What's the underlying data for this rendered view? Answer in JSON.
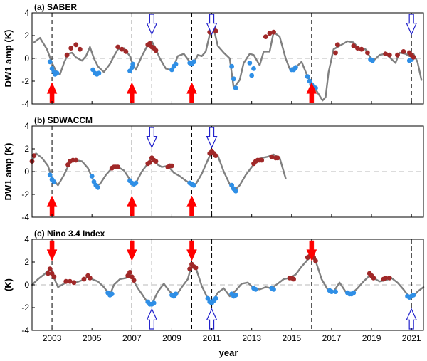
{
  "xlabel": "year",
  "colors": {
    "line": "#808080",
    "zero": "#c8c8c8",
    "cold": "#2f8fe6",
    "warm": "#a02828",
    "red_arrow": "#ff0000",
    "blue_arrow": "#2222cc",
    "vline": "#000000"
  },
  "chart_data": [
    {
      "type": "line",
      "title": "(a) SABER",
      "ylabel": "DW1 amp (K)",
      "xlim": [
        2002,
        2021.6
      ],
      "ylim": [
        -4,
        4
      ],
      "yticks": [
        -4,
        -2,
        0,
        2,
        4
      ],
      "xticks": [],
      "dashed_years": [
        2003,
        2007,
        2008,
        2010,
        2011,
        2016,
        2021
      ],
      "line": {
        "x": [
          2002.1,
          2002.4,
          2002.75,
          2003.0,
          2003.2,
          2003.4,
          2003.6,
          2003.8,
          2004.0,
          2004.2,
          2004.5,
          2004.7,
          2004.9,
          2005.1,
          2005.3,
          2005.6,
          2005.9,
          2006.1,
          2006.3,
          2006.6,
          2006.9,
          2007.0,
          2007.2,
          2007.5,
          2007.8,
          2008.0,
          2008.2,
          2008.4,
          2008.7,
          2008.9,
          2009.1,
          2009.3,
          2009.6,
          2009.9,
          2010.1,
          2010.3,
          2010.5,
          2010.7,
          2010.9,
          2011.1,
          2011.3,
          2011.6,
          2011.9,
          2012.1,
          2012.4,
          2012.6,
          2012.9,
          2013.1,
          2013.4,
          2013.6,
          2013.9,
          2014.1,
          2014.4,
          2014.7,
          2014.9,
          2015.2,
          2015.5,
          2015.8,
          2016.0,
          2016.3,
          2016.55,
          2016.7,
          2016.85,
          2017.1,
          2017.5,
          2017.8,
          2018.1,
          2018.4,
          2018.7,
          2018.9,
          2019.1,
          2019.4,
          2019.7,
          2019.9,
          2020.2,
          2020.4,
          2020.7,
          2020.9,
          2021.1,
          2021.3,
          2021.5
        ],
        "y": [
          1.4,
          1.8,
          0.8,
          -0.4,
          -1.1,
          -1.4,
          -0.4,
          0.4,
          0.5,
          0.1,
          -0.2,
          0.2,
          1.0,
          0.0,
          -0.7,
          -1.2,
          -0.5,
          0.2,
          0.8,
          0.9,
          0.2,
          -0.3,
          -1.0,
          0.2,
          1.2,
          1.5,
          0.8,
          0.0,
          -0.9,
          -1.0,
          -0.7,
          0.2,
          0.4,
          -0.3,
          -0.4,
          0.3,
          0.2,
          0.6,
          2.1,
          2.6,
          1.1,
          0.5,
          0.0,
          -2.6,
          -1.9,
          -0.4,
          0.4,
          0.3,
          -0.6,
          0.6,
          0.6,
          2.3,
          1.9,
          0.0,
          -0.9,
          -0.8,
          -0.3,
          -1.6,
          -2.2,
          -3.0,
          -3.7,
          -3.4,
          -1.2,
          0.8,
          1.2,
          1.5,
          1.4,
          0.8,
          0.8,
          0.2,
          -0.2,
          0.3,
          0.4,
          0.1,
          -0.4,
          0.5,
          0.4,
          0.2,
          0.4,
          -0.3,
          -1.9
        ]
      },
      "warm_points": {
        "x": [
          2003.75,
          2003.95,
          2004.2,
          2004.4,
          2006.3,
          2006.5,
          2006.7,
          2007.8,
          2007.9,
          2008.0,
          2008.1,
          2008.2,
          2010.9,
          2011.0,
          2011.1,
          2011.2,
          2013.7,
          2013.9,
          2014.1,
          2017.2,
          2017.3,
          2018.1,
          2018.3,
          2018.5,
          2018.8,
          2019.7,
          2019.9,
          2020.3,
          2020.6,
          2020.9,
          2021.0,
          2021.1
        ],
        "y": [
          0.3,
          0.9,
          1.2,
          0.8,
          1.0,
          0.8,
          0.6,
          1.2,
          1.3,
          1.0,
          0.9,
          0.7,
          2.3,
          2.5,
          2.6,
          2.4,
          1.9,
          2.2,
          2.3,
          0.5,
          1.2,
          1.1,
          0.9,
          0.8,
          0.5,
          0.4,
          0.3,
          0.3,
          0.6,
          0.5,
          0.3,
          0.1
        ]
      },
      "cold_points": {
        "x": [
          2002.9,
          2003.0,
          2003.1,
          2003.15,
          2003.25,
          2005.05,
          2005.15,
          2005.25,
          2005.35,
          2006.9,
          2007.0,
          2007.05,
          2009.0,
          2009.1,
          2009.2,
          2009.9,
          2010.0,
          2010.1,
          2012.0,
          2012.1,
          2012.2,
          2012.9,
          2013.0,
          2013.1,
          2015.0,
          2015.1,
          2015.2,
          2015.8,
          2015.9,
          2016.0,
          2016.1,
          2016.2,
          2018.95,
          2019.05,
          2020.9,
          2021.0
        ],
        "y": [
          -0.3,
          -0.9,
          -1.2,
          -1.4,
          -1.3,
          -1.0,
          -1.3,
          -1.4,
          -1.3,
          -1.1,
          -0.8,
          -0.5,
          -1.0,
          -0.7,
          -0.5,
          -0.4,
          -0.5,
          -0.3,
          -0.7,
          -1.8,
          -2.6,
          -0.4,
          -1.5,
          -0.9,
          -1.0,
          -1.0,
          -0.8,
          -1.6,
          -2.0,
          -2.3,
          -2.5,
          -2.6,
          -0.1,
          -0.2,
          -0.2,
          -0.1
        ]
      },
      "red_arrows": {
        "years": [
          2003,
          2007,
          2010,
          2016
        ],
        "dir": "up",
        "at": "bottom"
      },
      "blue_arrows": {
        "years": [
          2008,
          2011,
          2021
        ],
        "dir": "down",
        "at": "top"
      }
    },
    {
      "type": "line",
      "title": "(b) SDWACCM",
      "ylabel": "DW1 amp (K)",
      "xlim": [
        2002,
        2021.6
      ],
      "ylim": [
        -4,
        4
      ],
      "yticks": [
        -4,
        -2,
        0,
        2,
        4
      ],
      "xticks": [],
      "dashed_years": [
        2003,
        2007,
        2008,
        2010,
        2011
      ],
      "line": {
        "x": [
          2002.0,
          2002.2,
          2002.5,
          2002.8,
          2003.0,
          2003.3,
          2003.6,
          2003.9,
          2004.2,
          2004.5,
          2004.8,
          2005.0,
          2005.2,
          2005.4,
          2005.7,
          2006.0,
          2006.3,
          2006.6,
          2006.9,
          2007.0,
          2007.2,
          2007.5,
          2007.8,
          2008.0,
          2008.3,
          2008.5,
          2008.8,
          2009.1,
          2009.4,
          2009.7,
          2010.0,
          2010.2,
          2010.5,
          2010.8,
          2011.0,
          2011.3,
          2011.6,
          2011.9,
          2012.1,
          2012.4,
          2012.7,
          2013.0,
          2013.3,
          2013.5,
          2013.8,
          2014.1,
          2014.4,
          2014.7
        ],
        "y": [
          0.9,
          1.6,
          1.2,
          0.5,
          -0.6,
          -1.2,
          -0.3,
          0.8,
          1.0,
          0.9,
          0.3,
          -0.5,
          -1.2,
          -1.1,
          -0.3,
          0.3,
          0.4,
          0.1,
          -0.7,
          -1.1,
          -1.0,
          0.0,
          0.7,
          1.3,
          0.6,
          0.4,
          0.5,
          -0.1,
          -0.4,
          -0.8,
          -1.1,
          -1.1,
          -0.2,
          1.0,
          1.8,
          1.4,
          0.0,
          -1.1,
          -1.7,
          -1.2,
          -0.3,
          0.4,
          1.0,
          1.2,
          1.3,
          1.5,
          1.2,
          -0.6
        ]
      },
      "warm_points": {
        "x": [
          2002.0,
          2002.1,
          2003.8,
          2003.9,
          2004.05,
          2004.2,
          2006.0,
          2006.1,
          2006.2,
          2006.3,
          2007.8,
          2007.9,
          2008.0,
          2008.1,
          2008.2,
          2008.8,
          2008.9,
          2009.0,
          2010.9,
          2011.0,
          2011.1,
          2011.2,
          2013.1,
          2013.2,
          2013.3,
          2013.4,
          2013.5,
          2014.0,
          2014.2,
          2014.3
        ],
        "y": [
          0.9,
          1.4,
          0.6,
          0.9,
          1.0,
          1.0,
          0.3,
          0.4,
          0.4,
          0.4,
          0.7,
          0.8,
          1.2,
          1.0,
          0.9,
          0.4,
          0.5,
          0.5,
          1.6,
          1.8,
          1.6,
          1.4,
          0.7,
          0.9,
          1.0,
          1.0,
          1.0,
          1.3,
          1.2,
          1.2
        ]
      },
      "cold_points": {
        "x": [
          2002.9,
          2003.0,
          2003.1,
          2005.0,
          2005.1,
          2005.2,
          2005.3,
          2006.9,
          2007.0,
          2007.1,
          2007.2,
          2009.9,
          2010.0,
          2010.1,
          2012.0,
          2012.1,
          2012.2
        ],
        "y": [
          -0.3,
          -0.7,
          -0.9,
          -0.4,
          -0.9,
          -1.2,
          -1.4,
          -0.8,
          -1.0,
          -1.1,
          -1.0,
          -1.0,
          -1.1,
          -1.2,
          -1.2,
          -1.5,
          -1.7
        ]
      },
      "red_arrows": {
        "years": [
          2003,
          2007,
          2010
        ],
        "dir": "up",
        "at": "bottom"
      },
      "blue_arrows": {
        "years": [
          2008,
          2011
        ],
        "dir": "down",
        "at": "top"
      }
    },
    {
      "type": "line",
      "title": "(c) Nino 3.4 Index",
      "ylabel": "(K)",
      "xlim": [
        2002,
        2021.6
      ],
      "ylim": [
        -4,
        4
      ],
      "yticks": [
        -4,
        -2,
        0,
        2,
        4
      ],
      "xticks": [
        2003,
        2005,
        2007,
        2009,
        2011,
        2013,
        2015,
        2017,
        2019,
        2021
      ],
      "dashed_years": [
        2003,
        2007,
        2008,
        2010,
        2011,
        2016,
        2021
      ],
      "line": {
        "x": [
          2002.0,
          2002.3,
          2002.6,
          2002.9,
          2003.1,
          2003.3,
          2003.6,
          2003.9,
          2004.2,
          2004.5,
          2004.8,
          2005.0,
          2005.3,
          2005.6,
          2005.9,
          2006.1,
          2006.4,
          2006.7,
          2006.9,
          2007.1,
          2007.3,
          2007.5,
          2007.8,
          2008.0,
          2008.3,
          2008.6,
          2008.9,
          2009.2,
          2009.5,
          2009.8,
          2010.0,
          2010.2,
          2010.5,
          2010.8,
          2011.0,
          2011.3,
          2011.6,
          2011.9,
          2012.2,
          2012.5,
          2012.8,
          2013.1,
          2013.4,
          2013.7,
          2014.0,
          2014.3,
          2014.6,
          2014.9,
          2015.2,
          2015.5,
          2015.8,
          2016.0,
          2016.2,
          2016.5,
          2016.8,
          2017.1,
          2017.4,
          2017.7,
          2018.0,
          2018.3,
          2018.6,
          2018.9,
          2019.1,
          2019.4,
          2019.7,
          2020.0,
          2020.3,
          2020.6,
          2020.9,
          2021.1,
          2021.3,
          2021.6
        ],
        "y": [
          0.0,
          0.5,
          0.9,
          1.4,
          0.6,
          -0.2,
          0.1,
          0.3,
          0.2,
          0.4,
          0.7,
          0.5,
          0.3,
          -0.2,
          -0.9,
          0.0,
          0.5,
          0.6,
          1.0,
          0.3,
          -0.3,
          -0.8,
          -1.6,
          -1.7,
          -0.6,
          0.1,
          -0.6,
          -1.0,
          -0.2,
          0.5,
          1.8,
          1.5,
          -0.1,
          -1.2,
          -1.6,
          -0.7,
          -0.3,
          -1.0,
          -0.5,
          0.1,
          0.2,
          -0.3,
          -0.4,
          -0.2,
          -0.3,
          0.1,
          0.5,
          0.6,
          0.9,
          1.6,
          2.2,
          2.5,
          2.1,
          0.5,
          -0.4,
          -0.6,
          0.2,
          -0.6,
          -0.8,
          -0.3,
          0.3,
          0.8,
          0.6,
          0.3,
          0.4,
          0.6,
          0.2,
          -0.4,
          -1.1,
          -1.0,
          -0.6,
          -0.2
        ]
      },
      "warm_points": {
        "x": [
          2002.8,
          2002.9,
          2003.0,
          2003.1,
          2003.7,
          2003.9,
          2004.1,
          2004.6,
          2004.8,
          2004.9,
          2006.8,
          2006.9,
          2007.0,
          2007.1,
          2009.9,
          2010.0,
          2010.1,
          2010.2,
          2014.9,
          2015.0,
          2015.1,
          2015.8,
          2015.9,
          2016.0,
          2016.1,
          2016.2,
          2018.9,
          2019.0,
          2019.1,
          2019.6,
          2019.7,
          2019.9
        ],
        "y": [
          1.0,
          1.4,
          1.0,
          0.7,
          0.3,
          0.3,
          0.2,
          0.5,
          0.8,
          0.6,
          0.8,
          1.1,
          0.7,
          0.4,
          1.4,
          1.8,
          1.6,
          1.5,
          0.6,
          0.6,
          0.5,
          2.4,
          2.5,
          2.6,
          2.4,
          2.1,
          1.0,
          0.8,
          0.6,
          0.5,
          0.6,
          0.6
        ]
      },
      "cold_points": {
        "x": [
          2005.8,
          2005.9,
          2006.0,
          2007.8,
          2007.9,
          2008.0,
          2008.1,
          2009.0,
          2009.1,
          2009.2,
          2010.8,
          2010.9,
          2011.0,
          2011.1,
          2011.2,
          2012.0,
          2012.1,
          2012.2,
          2013.1,
          2013.2,
          2014.0,
          2014.1,
          2016.9,
          2017.0,
          2017.2,
          2017.8,
          2017.9,
          2018.0,
          2018.1,
          2020.8,
          2020.9,
          2021.0,
          2021.1
        ],
        "y": [
          -0.7,
          -0.9,
          -0.8,
          -1.5,
          -1.7,
          -1.7,
          -1.6,
          -0.9,
          -1.0,
          -0.8,
          -1.2,
          -1.5,
          -1.6,
          -1.4,
          -1.2,
          -0.8,
          -1.0,
          -0.9,
          -0.3,
          -0.4,
          -0.3,
          -0.4,
          -0.5,
          -0.6,
          -0.6,
          -0.7,
          -0.8,
          -0.8,
          -0.7,
          -1.0,
          -1.1,
          -1.0,
          -0.9
        ]
      },
      "red_arrows": {
        "years": [
          2003,
          2007,
          2010,
          2016
        ],
        "dir": "down",
        "at": "top"
      },
      "blue_arrows": {
        "years": [
          2008,
          2011,
          2021
        ],
        "dir": "up",
        "at": "bottom"
      }
    }
  ]
}
